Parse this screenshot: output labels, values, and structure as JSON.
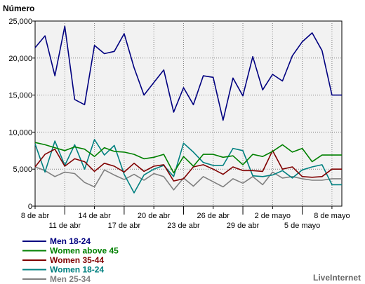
{
  "chart_data": {
    "type": "line",
    "ylabel": "Número",
    "ylim": [
      0,
      25000
    ],
    "yticks": [
      0,
      5000,
      10000,
      15000,
      20000,
      25000
    ],
    "ytick_labels": [
      "0",
      "5,000",
      "10,000",
      "15,000",
      "20,000",
      "25,000"
    ],
    "x_count": 32,
    "xticks": [
      {
        "label": "8 de abr",
        "index": 0,
        "row": 1
      },
      {
        "label": "11 de abr",
        "index": 3,
        "row": 2
      },
      {
        "label": "14 de abr",
        "index": 6,
        "row": 1
      },
      {
        "label": "17 de abr",
        "index": 9,
        "row": 2
      },
      {
        "label": "20 de abr",
        "index": 12,
        "row": 1
      },
      {
        "label": "23 de abr",
        "index": 15,
        "row": 2
      },
      {
        "label": "26 de abr",
        "index": 18,
        "row": 1
      },
      {
        "label": "29 de abr",
        "index": 21,
        "row": 2
      },
      {
        "label": "2 de mayo",
        "index": 24,
        "row": 1
      },
      {
        "label": "5 de mayo",
        "index": 27,
        "row": 2
      },
      {
        "label": "8 de mayo",
        "index": 30,
        "row": 1
      }
    ],
    "grid": true,
    "legend_position": "bottom-left",
    "series": [
      {
        "name": "Men 18-24",
        "color": "#000080",
        "values": [
          21400,
          23000,
          17600,
          24300,
          14400,
          13700,
          21700,
          20600,
          20900,
          23300,
          18700,
          15000,
          16700,
          18400,
          12700,
          16000,
          13700,
          17600,
          17400,
          11600,
          17300,
          14900,
          20200,
          15700,
          17800,
          16900,
          20300,
          22200,
          23400,
          21000,
          15000,
          15000
        ]
      },
      {
        "name": "Women above 45",
        "color": "#008000",
        "values": [
          8600,
          8300,
          7900,
          7500,
          8000,
          7700,
          6700,
          7900,
          7400,
          7300,
          7000,
          6400,
          6600,
          7000,
          4500,
          6700,
          5400,
          7000,
          7000,
          6600,
          6800,
          5600,
          7000,
          6700,
          7400,
          8300,
          7300,
          7800,
          6000,
          6900,
          6900,
          6900
        ]
      },
      {
        "name": "Women 35-44",
        "color": "#800000",
        "values": [
          5300,
          7000,
          7700,
          5400,
          6400,
          6000,
          4700,
          5800,
          5400,
          4600,
          5800,
          4700,
          5400,
          5600,
          3400,
          3700,
          5300,
          5600,
          5000,
          4300,
          5300,
          4800,
          4800,
          4700,
          7500,
          5000,
          5300,
          4000,
          3900,
          4000,
          5000,
          5000
        ]
      },
      {
        "name": "Women 18-24",
        "color": "#008080",
        "values": [
          8400,
          4600,
          8800,
          5500,
          8300,
          5000,
          9000,
          6900,
          8200,
          4300,
          1800,
          4200,
          5000,
          5500,
          4000,
          8500,
          7300,
          5900,
          5500,
          5500,
          7800,
          7500,
          4100,
          4000,
          4200,
          4800,
          3800,
          4900,
          5300,
          5600,
          2900,
          2900
        ]
      },
      {
        "name": "Men 25-34",
        "color": "#808080",
        "values": [
          5300,
          4800,
          4000,
          4600,
          4400,
          3200,
          2600,
          4900,
          4200,
          3600,
          4300,
          3500,
          4400,
          4000,
          2200,
          3800,
          2700,
          4000,
          3300,
          2600,
          3700,
          3100,
          4000,
          2900,
          4600,
          3800,
          4000,
          3700,
          3500,
          3500,
          3700,
          3700
        ]
      }
    ]
  },
  "brand": "LiveInternet"
}
